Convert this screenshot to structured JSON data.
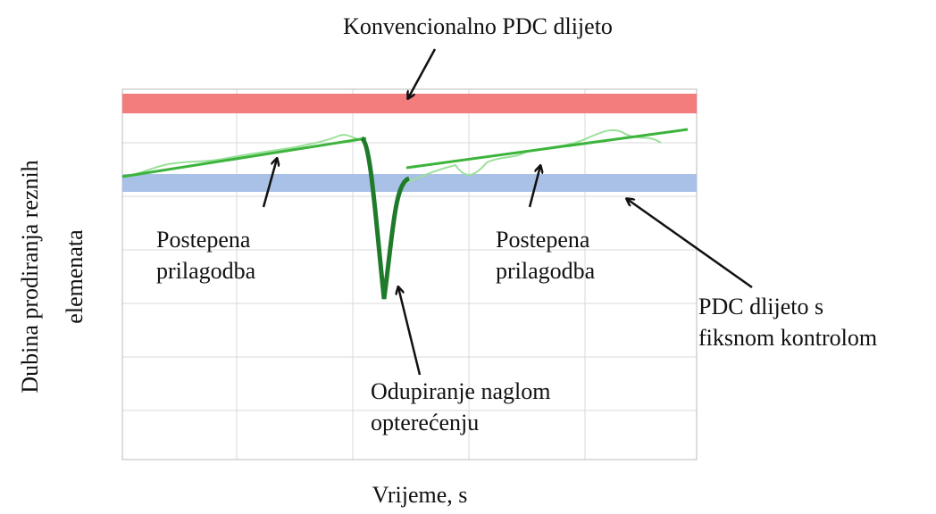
{
  "title": "Konvencionalno PDC dlijeto",
  "axes": {
    "y_label": [
      "Dubina prodiranja reznih",
      "elemenata"
    ],
    "x_label": "Vrijeme, s"
  },
  "annotations": {
    "left_adaptation": [
      "Postepena",
      "prilagodba"
    ],
    "right_adaptation": [
      "Postepena",
      "prilagodba"
    ],
    "fixed_control": [
      "PDC dlijeto s",
      "fiksnom kontrolom"
    ],
    "sudden_load": [
      "Odupiranje naglom",
      "opterećenju"
    ]
  }
}
